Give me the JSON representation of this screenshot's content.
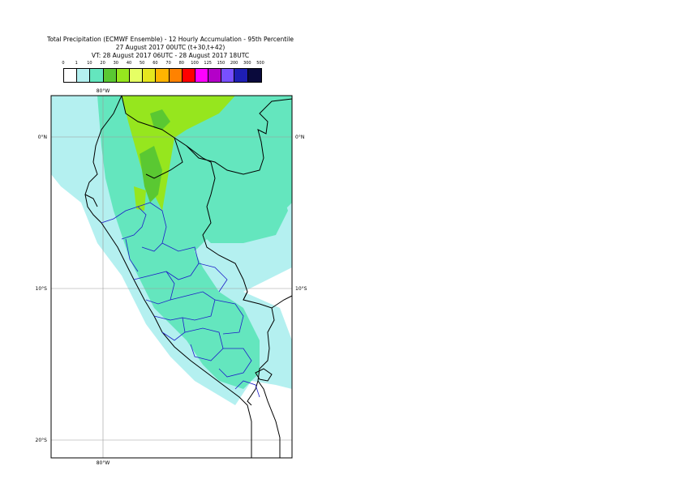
{
  "title": {
    "line1": "Total Precipitation (ECMWF Ensemble) - 12 Hourly Accumulation - 95th Percentile",
    "line2": "27 August 2017 00UTC (t+30,t+42)",
    "line3": "VT: 28 August 2017 06UTC - 28 August 2017 18UTC"
  },
  "legend": {
    "labels": [
      "0",
      "1",
      "10",
      "20",
      "30",
      "40",
      "50",
      "60",
      "70",
      "80",
      "100",
      "125",
      "150",
      "200",
      "300",
      "500"
    ],
    "colors": [
      "#ffffff",
      "#b4f0f0",
      "#64e6be",
      "#5ac832",
      "#96e61e",
      "#e6ff64",
      "#e6e61e",
      "#ffb400",
      "#ff8200",
      "#ff0000",
      "#ff00ff",
      "#b400c8",
      "#7850ff",
      "#1e1eb4",
      "#0a0a3c"
    ]
  },
  "axes": {
    "lon_top": "80°W",
    "lon_bottom": "80°W",
    "lat_0_left": "0°N",
    "lat_0_right": "0°N",
    "lat_10_left": "10°S",
    "lat_10_right": "10°S",
    "lat_20_left": "20°S"
  }
}
